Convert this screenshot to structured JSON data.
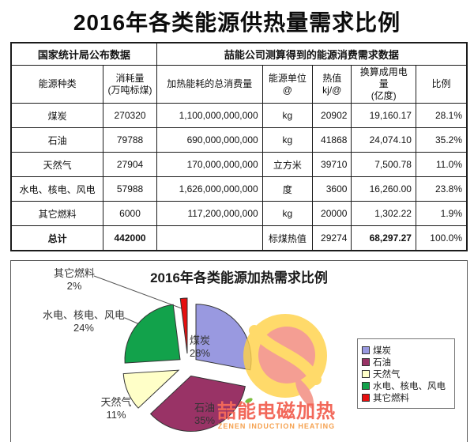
{
  "title": "2016年各类能源供热量需求比例",
  "table": {
    "group_headers": [
      "国家统计局公布数据",
      "喆能公司测算得到的能源消费需求数据"
    ],
    "column_headers": [
      "能源种类",
      "消耗量\n(万吨标煤)",
      "加热能耗的总消费量",
      "能源单位\n@",
      "热值\nkj/@",
      "换算成用电量\n(亿度)",
      "比例"
    ],
    "rows": [
      [
        "煤炭",
        "270320",
        "1,100,000,000,000",
        "kg",
        "20902",
        "19,160.17",
        "28.1%"
      ],
      [
        "石油",
        "79788",
        "690,000,000,000",
        "kg",
        "41868",
        "24,074.10",
        "35.2%"
      ],
      [
        "天然气",
        "27904",
        "170,000,000,000",
        "立方米",
        "39710",
        "7,500.78",
        "11.0%"
      ],
      [
        "水电、核电、风电",
        "57988",
        "1,626,000,000,000",
        "度",
        "3600",
        "16,260.00",
        "23.8%"
      ],
      [
        "其它燃料",
        "6000",
        "117,200,000,000",
        "kg",
        "20000",
        "1,302.22",
        "1.9%"
      ]
    ],
    "total_row": [
      "总计",
      "442000",
      "",
      "标煤热值",
      "29274",
      "68,297.27",
      "100.0%"
    ]
  },
  "chart_data": {
    "type": "pie",
    "title": "2016年各类能源加热需求比例",
    "labels": [
      "煤炭",
      "石油",
      "天然气",
      "水电、核电、风电",
      "其它燃料"
    ],
    "values": [
      28,
      35,
      11,
      24,
      2
    ],
    "percent_labels": [
      "28%",
      "35%",
      "11%",
      "24%",
      "2%"
    ],
    "colors": [
      "#9999E0",
      "#993366",
      "#FFFFC8",
      "#12A24B",
      "#E60F0F"
    ],
    "legend_position": "right",
    "exploded": true
  },
  "logo": {
    "name_cn": "喆能电磁加热",
    "name_en": "ZENEN INDUCTION HEATING"
  },
  "colors": {
    "slice_stroke": "#333333",
    "logo_yellow": "#FFD24A",
    "logo_flame": "#F2897C"
  }
}
